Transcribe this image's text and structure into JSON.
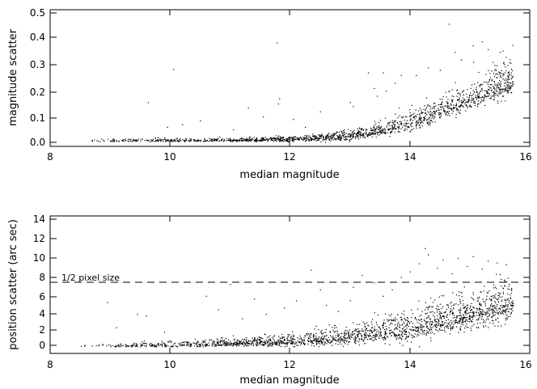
{
  "chart_data": [
    {
      "type": "scatter",
      "xlabel": "median magnitude",
      "ylabel": "magnitude scatter",
      "xlim": [
        8,
        16
      ],
      "ylim": [
        0,
        0.5
      ],
      "x_ticks": [
        8,
        10,
        12,
        14,
        16
      ],
      "x_tick_labels": [
        "8",
        "10",
        "12",
        "14",
        "16"
      ],
      "y_ticks": [
        0.0,
        0.1,
        0.2,
        0.3,
        0.4,
        0.5
      ],
      "y_tick_labels": [
        "0.0",
        "0.1",
        "0.2",
        "0.3",
        "0.4",
        "0.5"
      ],
      "marker_color": "#000000",
      "trend": {
        "x": [
          8.5,
          9.0,
          9.5,
          10.0,
          10.5,
          11.0,
          11.5,
          12.0,
          12.5,
          13.0,
          13.5,
          14.0,
          14.5,
          15.0,
          15.5,
          15.7
        ],
        "y": [
          0.008,
          0.008,
          0.009,
          0.009,
          0.009,
          0.01,
          0.011,
          0.013,
          0.018,
          0.026,
          0.045,
          0.075,
          0.12,
          0.17,
          0.22,
          0.23
        ],
        "spread": [
          0.004,
          0.004,
          0.004,
          0.004,
          0.004,
          0.004,
          0.005,
          0.006,
          0.008,
          0.012,
          0.018,
          0.025,
          0.03,
          0.035,
          0.04,
          0.04
        ]
      },
      "outliers": [
        {
          "x": 9.63,
          "y": 0.155
        },
        {
          "x": 9.95,
          "y": 0.06
        },
        {
          "x": 10.05,
          "y": 0.283
        },
        {
          "x": 10.2,
          "y": 0.07
        },
        {
          "x": 10.5,
          "y": 0.085
        },
        {
          "x": 11.3,
          "y": 0.135
        },
        {
          "x": 11.05,
          "y": 0.05
        },
        {
          "x": 11.55,
          "y": 0.1
        },
        {
          "x": 11.78,
          "y": 0.386
        },
        {
          "x": 11.82,
          "y": 0.17
        },
        {
          "x": 11.8,
          "y": 0.15
        },
        {
          "x": 12.05,
          "y": 0.09
        },
        {
          "x": 12.25,
          "y": 0.06
        },
        {
          "x": 12.5,
          "y": 0.12
        },
        {
          "x": 12.9,
          "y": 0.05
        },
        {
          "x": 13.0,
          "y": 0.155
        },
        {
          "x": 13.05,
          "y": 0.14
        },
        {
          "x": 13.3,
          "y": 0.27
        },
        {
          "x": 13.4,
          "y": 0.21
        },
        {
          "x": 13.45,
          "y": 0.18
        },
        {
          "x": 13.55,
          "y": 0.27
        },
        {
          "x": 13.6,
          "y": 0.2
        },
        {
          "x": 13.75,
          "y": 0.23
        },
        {
          "x": 13.85,
          "y": 0.26
        },
        {
          "x": 14.1,
          "y": 0.26
        },
        {
          "x": 14.3,
          "y": 0.29
        },
        {
          "x": 14.5,
          "y": 0.28
        },
        {
          "x": 14.65,
          "y": 0.458
        },
        {
          "x": 14.75,
          "y": 0.35
        },
        {
          "x": 14.85,
          "y": 0.32
        },
        {
          "x": 15.05,
          "y": 0.375
        },
        {
          "x": 15.2,
          "y": 0.39
        },
        {
          "x": 15.3,
          "y": 0.36
        },
        {
          "x": 15.5,
          "y": 0.35
        },
        {
          "x": 15.6,
          "y": 0.33
        }
      ]
    },
    {
      "type": "scatter",
      "xlabel": "median magnitude",
      "ylabel": "position scatter (arc sec)",
      "xlim": [
        8,
        16
      ],
      "ylim": [
        -1,
        15
      ],
      "x_ticks": [
        8,
        10,
        12,
        14,
        16
      ],
      "x_tick_labels": [
        "8",
        "10",
        "12",
        "14",
        "16"
      ],
      "y_ticks": [
        0,
        2,
        4,
        6,
        8,
        10,
        12,
        14
      ],
      "y_tick_labels": [
        "0",
        "2",
        "4",
        "6",
        "8",
        "10",
        "12",
        "14"
      ],
      "marker_color": "#000000",
      "reference_line": {
        "y": 7.3,
        "style": "dashed",
        "label": "1/2 pixel size"
      },
      "trend": {
        "x": [
          8.5,
          9.0,
          9.5,
          10.0,
          10.5,
          11.0,
          11.5,
          12.0,
          12.5,
          13.0,
          13.5,
          14.0,
          14.5,
          15.0,
          15.5,
          15.7
        ],
        "y": [
          0.0,
          0.0,
          0.05,
          0.1,
          0.15,
          0.25,
          0.35,
          0.5,
          0.7,
          1.0,
          1.4,
          1.9,
          2.6,
          3.4,
          4.3,
          4.6
        ],
        "spread": [
          0.1,
          0.1,
          0.15,
          0.2,
          0.25,
          0.3,
          0.35,
          0.45,
          0.55,
          0.7,
          0.85,
          1.0,
          1.1,
          1.2,
          1.3,
          1.3
        ]
      },
      "outliers": [
        {
          "x": 8.95,
          "y": 4.8
        },
        {
          "x": 9.1,
          "y": 2.0
        },
        {
          "x": 9.45,
          "y": 3.5
        },
        {
          "x": 9.6,
          "y": 3.3
        },
        {
          "x": 9.9,
          "y": 1.5
        },
        {
          "x": 10.6,
          "y": 5.5
        },
        {
          "x": 10.8,
          "y": 4.0
        },
        {
          "x": 11.0,
          "y": 6.8
        },
        {
          "x": 11.2,
          "y": 3.0
        },
        {
          "x": 11.4,
          "y": 5.2
        },
        {
          "x": 11.6,
          "y": 3.5
        },
        {
          "x": 11.9,
          "y": 4.2
        },
        {
          "x": 12.1,
          "y": 5.0
        },
        {
          "x": 12.35,
          "y": 8.4
        },
        {
          "x": 12.5,
          "y": 6.2
        },
        {
          "x": 12.6,
          "y": 4.5
        },
        {
          "x": 12.8,
          "y": 3.8
        },
        {
          "x": 13.0,
          "y": 5.0
        },
        {
          "x": 13.05,
          "y": 6.5
        },
        {
          "x": 13.2,
          "y": 7.8
        },
        {
          "x": 13.4,
          "y": 7.0
        },
        {
          "x": 13.55,
          "y": 5.5
        },
        {
          "x": 13.7,
          "y": 6.2
        },
        {
          "x": 13.85,
          "y": 7.6
        },
        {
          "x": 14.0,
          "y": 8.2
        },
        {
          "x": 14.15,
          "y": 9.1
        },
        {
          "x": 14.25,
          "y": 10.8
        },
        {
          "x": 14.3,
          "y": 10.1
        },
        {
          "x": 14.45,
          "y": 8.6
        },
        {
          "x": 14.55,
          "y": 9.5
        },
        {
          "x": 14.7,
          "y": 8.0
        },
        {
          "x": 14.8,
          "y": 9.7
        },
        {
          "x": 14.95,
          "y": 8.8
        },
        {
          "x": 15.05,
          "y": 9.9
        },
        {
          "x": 15.2,
          "y": 8.5
        },
        {
          "x": 15.3,
          "y": 9.4
        },
        {
          "x": 15.45,
          "y": 9.2
        },
        {
          "x": 15.6,
          "y": 9.0
        },
        {
          "x": 15.5,
          "y": 7.9
        }
      ]
    }
  ]
}
